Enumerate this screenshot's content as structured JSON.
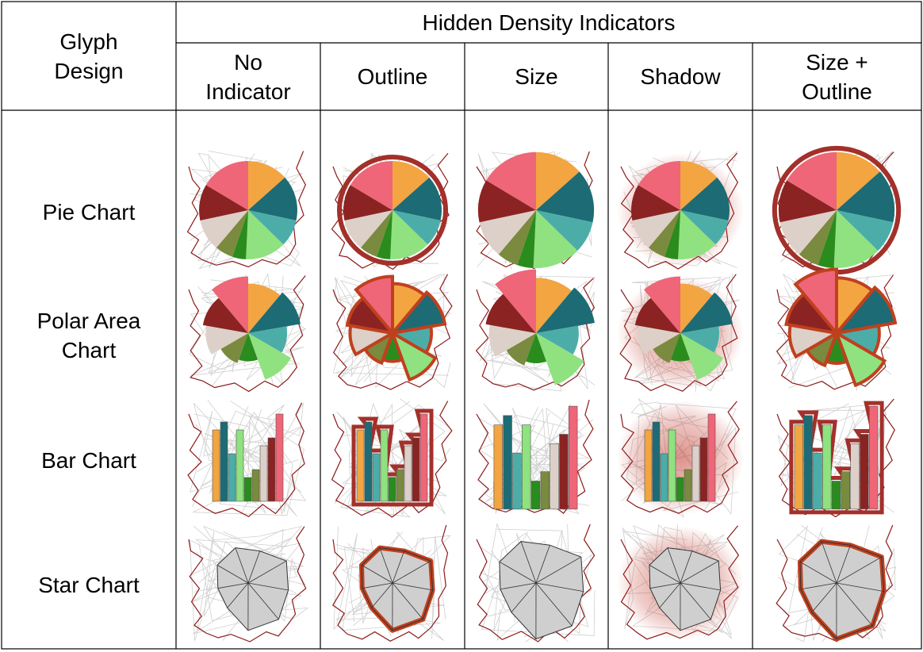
{
  "header": {
    "row_label": "Glyph\nDesign",
    "group_label": "Hidden Density Indicators",
    "columns": [
      "No\nIndicator",
      "Outline",
      "Size",
      "Shadow",
      "Size +\nOutline"
    ]
  },
  "rows": [
    "Pie Chart",
    "Polar Area\nChart",
    "Bar Chart",
    "Star Chart"
  ],
  "colors": {
    "categories": [
      "#f2a541",
      "#1d6b74",
      "#4cada8",
      "#8fe27f",
      "#2a8c1d",
      "#7a8a3e",
      "#dcd0c8",
      "#8b2323",
      "#ee6677"
    ],
    "outline": "#c0401e",
    "outline_dark": "#a3302a",
    "map_border": "#8b1a1a",
    "map_lines": "#cfcfcf",
    "star_fill": "#cfcfcf"
  },
  "glyph_values": [
    0.9,
    1.0,
    0.6,
    0.9,
    0.3,
    0.4,
    0.7,
    0.8,
    1.1
  ],
  "star_values": [
    0.5,
    0.8,
    0.7,
    0.9,
    0.9,
    0.45,
    0.4,
    0.55,
    0.6
  ]
}
